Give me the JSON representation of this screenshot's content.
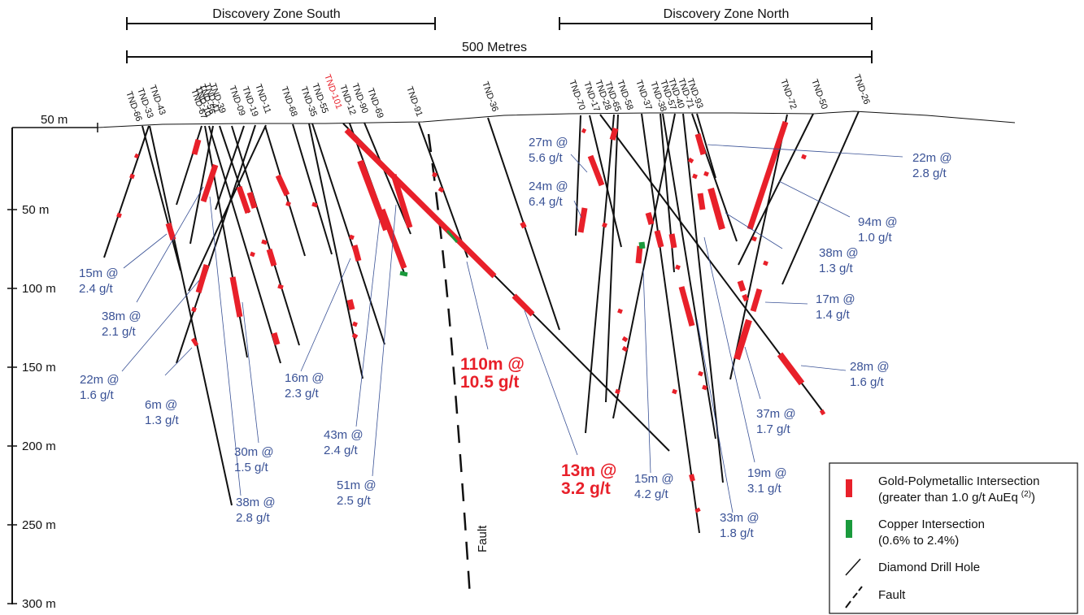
{
  "zones": [
    {
      "label": "Discovery Zone South"
    },
    {
      "label": "Discovery Zone North"
    }
  ],
  "scale_bar": {
    "label": "500 Metres"
  },
  "depth_axis": {
    "labels": [
      "50 m",
      "50 m",
      "100 m",
      "150 m",
      "200 m",
      "250 m",
      "300 m"
    ]
  },
  "holes": [
    {
      "name": "TND-66",
      "highlight": false
    },
    {
      "name": "TND-33",
      "highlight": false
    },
    {
      "name": "TND-43",
      "highlight": false
    },
    {
      "name": "TND-67",
      "highlight": false
    },
    {
      "name": "TND-10",
      "highlight": false
    },
    {
      "name": "TND-56",
      "highlight": false
    },
    {
      "name": "TND-41",
      "highlight": false
    },
    {
      "name": "TND-39",
      "highlight": false
    },
    {
      "name": "TND-09",
      "highlight": false
    },
    {
      "name": "TND-19",
      "highlight": false
    },
    {
      "name": "TND-11",
      "highlight": false
    },
    {
      "name": "TND-68",
      "highlight": false
    },
    {
      "name": "TND-35",
      "highlight": false
    },
    {
      "name": "TND-55",
      "highlight": false
    },
    {
      "name": "TND-101",
      "highlight": true
    },
    {
      "name": "TND-12",
      "highlight": false
    },
    {
      "name": "TND-90",
      "highlight": false
    },
    {
      "name": "TND-69",
      "highlight": false
    },
    {
      "name": "TND-91",
      "highlight": false
    },
    {
      "name": "TND-36",
      "highlight": false
    },
    {
      "name": "TND-70",
      "highlight": false
    },
    {
      "name": "TND-17",
      "highlight": false
    },
    {
      "name": "TND-28",
      "highlight": false
    },
    {
      "name": "TND-65",
      "highlight": false
    },
    {
      "name": "TND-58",
      "highlight": false
    },
    {
      "name": "TND-37",
      "highlight": false
    },
    {
      "name": "TND-38",
      "highlight": false
    },
    {
      "name": "TND-57",
      "highlight": false
    },
    {
      "name": "TND-40",
      "highlight": false
    },
    {
      "name": "TND-71",
      "highlight": false
    },
    {
      "name": "TND-93",
      "highlight": false
    },
    {
      "name": "TND-72",
      "highlight": false
    },
    {
      "name": "TND-50",
      "highlight": false
    },
    {
      "name": "TND-26",
      "highlight": false
    }
  ],
  "intercepts": [
    {
      "line1": "15m @",
      "line2": "2.4 g/t",
      "highlight": false
    },
    {
      "line1": "38m @",
      "line2": "2.1 g/t",
      "highlight": false
    },
    {
      "line1": "22m @",
      "line2": "1.6 g/t",
      "highlight": false
    },
    {
      "line1": "6m @",
      "line2": "1.3 g/t",
      "highlight": false
    },
    {
      "line1": "30m @",
      "line2": "1.5 g/t",
      "highlight": false
    },
    {
      "line1": "38m @",
      "line2": "2.8 g/t",
      "highlight": false
    },
    {
      "line1": "16m @",
      "line2": "2.3 g/t",
      "highlight": false
    },
    {
      "line1": "43m @",
      "line2": "2.4 g/t",
      "highlight": false
    },
    {
      "line1": "51m @",
      "line2": "2.5 g/t",
      "highlight": false
    },
    {
      "line1": "110m @",
      "line2": "10.5 g/t",
      "highlight": true
    },
    {
      "line1": "13m @",
      "line2": "3.2 g/t",
      "highlight": true
    },
    {
      "line1": "27m @",
      "line2": "5.6 g/t",
      "highlight": false
    },
    {
      "line1": "24m @",
      "line2": "6.4 g/t",
      "highlight": false
    },
    {
      "line1": "15m @",
      "line2": "4.2 g/t",
      "highlight": false
    },
    {
      "line1": "33m @",
      "line2": "1.8 g/t",
      "highlight": false
    },
    {
      "line1": "19m @",
      "line2": "3.1 g/t",
      "highlight": false
    },
    {
      "line1": "37m @",
      "line2": "1.7 g/t",
      "highlight": false
    },
    {
      "line1": "28m @",
      "line2": "1.6 g/t",
      "highlight": false
    },
    {
      "line1": "17m @",
      "line2": "1.4 g/t",
      "highlight": false
    },
    {
      "line1": "38m @",
      "line2": "1.3 g/t",
      "highlight": false
    },
    {
      "line1": "94m @",
      "line2": "1.0 g/t",
      "highlight": false
    },
    {
      "line1": "22m @",
      "line2": "2.8 g/t",
      "highlight": false
    }
  ],
  "fault_label": "Fault",
  "legend": {
    "gold_line1": "Gold-Polymetallic Intersection",
    "gold_line2": "(greater than 1.0 g/t AuEq",
    "gold_sup": "(2)",
    "gold_close": ")",
    "copper_line1": "Copper Intersection",
    "copper_line2": "(0.6% to 2.4%)",
    "hole": "Diamond Drill Hole",
    "fault": "Fault"
  },
  "colors": {
    "gold": "#e8202a",
    "copper": "#1a9a3c",
    "label_blue": "#3a5296",
    "highlight_red": "#e8202a",
    "line": "#111111"
  }
}
